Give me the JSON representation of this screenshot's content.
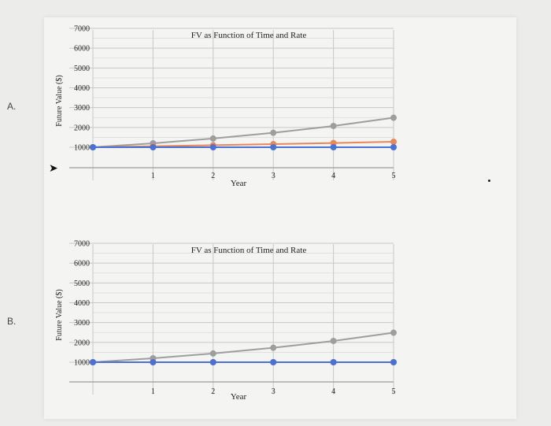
{
  "options": [
    {
      "label": "A."
    },
    {
      "label": "B."
    }
  ],
  "chart_data": [
    {
      "type": "line",
      "title": "FV as Function of Time and Rate",
      "xlabel": "Year",
      "ylabel": "Future Value ($)",
      "x": [
        0,
        1,
        2,
        3,
        4,
        5
      ],
      "x_tick_labels": [
        "1",
        "2",
        "3",
        "4",
        "5"
      ],
      "y_tick_labels": [
        "1000",
        "2000",
        "3000",
        "4000",
        "5000",
        "6000",
        "7000"
      ],
      "ylim": [
        0,
        7000
      ],
      "grid": true,
      "series": [
        {
          "color": "#9e9e9e",
          "values": [
            1000,
            1200,
            1440,
            1728,
            2074,
            2488
          ]
        },
        {
          "color": "#e8875a",
          "values": [
            1000,
            1050,
            1103,
            1158,
            1216,
            1276
          ]
        },
        {
          "color": "#4a72d6",
          "values": [
            1000,
            1000,
            1000,
            1000,
            1000,
            1000
          ]
        }
      ]
    },
    {
      "type": "line",
      "title": "FV as Function of Time and Rate",
      "xlabel": "Year",
      "ylabel": "Future Value ($)",
      "x": [
        0,
        1,
        2,
        3,
        4,
        5
      ],
      "x_tick_labels": [
        "1",
        "2",
        "3",
        "4",
        "5"
      ],
      "y_tick_labels": [
        "1000",
        "2000",
        "3000",
        "4000",
        "5000",
        "6000",
        "7000"
      ],
      "ylim": [
        0,
        7000
      ],
      "grid": true,
      "series": [
        {
          "color": "#9e9e9e",
          "values": [
            1000,
            1200,
            1440,
            1728,
            2074,
            2488
          ]
        },
        {
          "color": "#e8875a",
          "values": [
            1000,
            1000,
            1000,
            1000,
            1000,
            1000
          ]
        },
        {
          "color": "#4a72d6",
          "values": [
            1000,
            1000,
            1000,
            1000,
            1000,
            1000
          ]
        }
      ]
    }
  ]
}
